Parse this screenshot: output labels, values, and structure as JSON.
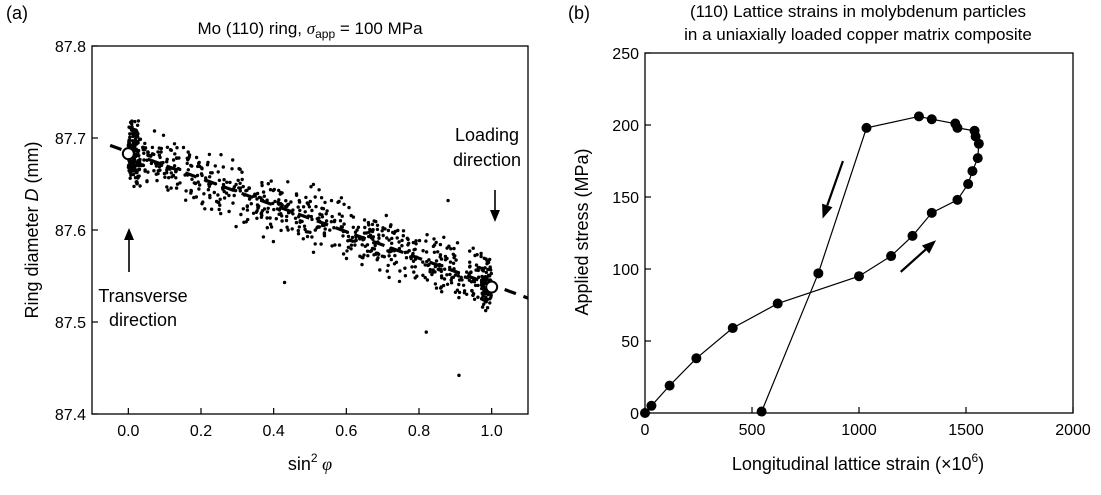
{
  "figure": {
    "panel_a_label": "(a)",
    "panel_b_label": "(b)"
  },
  "chart_data": [
    {
      "type": "scatter",
      "title_parts": {
        "pre": "Mo (110) ring, ",
        "sigma": "σ",
        "sub": "app",
        "post": " = 100 MPa"
      },
      "xlabel_parts": {
        "pre": "sin",
        "sup": "2",
        "phi": " φ"
      },
      "ylabel_parts": {
        "pre": "Ring diameter ",
        "ital": "D",
        "post": " (mm)"
      },
      "xlim": [
        -0.1,
        1.1
      ],
      "ylim": [
        87.4,
        87.8
      ],
      "xticks": [
        0.0,
        0.2,
        0.4,
        0.6,
        0.8,
        1.0
      ],
      "xtick_labels": [
        "0.0",
        "0.2",
        "0.4",
        "0.6",
        "0.8",
        "1.0"
      ],
      "yticks": [
        87.4,
        87.5,
        87.6,
        87.7,
        87.8
      ],
      "ytick_labels": [
        "87.4",
        "87.5",
        "87.6",
        "87.7",
        "87.8"
      ],
      "fit_line": {
        "x": [
          -0.05,
          1.1
        ],
        "y": [
          87.692,
          87.526
        ]
      },
      "open_markers": [
        {
          "x": 0.0,
          "y": 87.683
        },
        {
          "x": 1.0,
          "y": 87.538
        }
      ],
      "scatter_spread_mm": 0.025,
      "scatter_count": 900,
      "outliers": [
        {
          "x": 0.91,
          "y": 87.442
        },
        {
          "x": 0.43,
          "y": 87.543
        },
        {
          "x": 0.82,
          "y": 87.489
        },
        {
          "x": 0.88,
          "y": 87.632
        }
      ],
      "annotations": {
        "transverse": [
          "Transverse",
          "direction"
        ],
        "loading": [
          "Loading",
          "direction"
        ]
      },
      "grid": false
    },
    {
      "type": "line",
      "title_lines": [
        "(110) Lattice strains in molybdenum particles",
        "in a uniaxially loaded copper matrix composite"
      ],
      "xlabel_parts": {
        "pre": "Longitudinal lattice strain (×10",
        "sup": "6",
        "post": ")"
      },
      "ylabel": "Applied stress (MPa)",
      "xlim": [
        0,
        2000
      ],
      "ylim": [
        0,
        250
      ],
      "xticks": [
        0,
        500,
        1000,
        1500,
        2000
      ],
      "xtick_labels": [
        "0",
        "500",
        "1000",
        "1500",
        "2000"
      ],
      "yticks": [
        0,
        50,
        100,
        150,
        200,
        250
      ],
      "ytick_labels": [
        "0",
        "50",
        "100",
        "150",
        "200",
        "250"
      ],
      "loading": {
        "x": [
          0,
          30,
          115,
          240,
          410,
          620,
          1000,
          1150,
          1250,
          1340,
          1460,
          1510,
          1530,
          1555,
          1560,
          1545,
          1540,
          1460,
          1450,
          1340,
          1280
        ],
        "y": [
          0,
          5,
          19,
          38,
          59,
          76,
          95,
          109,
          123,
          139,
          148,
          159,
          168,
          177,
          187,
          192,
          196,
          198,
          201,
          204,
          206
        ]
      },
      "unloading": {
        "x": [
          1280,
          1035,
          810,
          545
        ],
        "y": [
          206,
          198,
          97,
          1
        ]
      },
      "arrows": [
        {
          "from": [
            925,
            175
          ],
          "to": [
            830,
            135
          ],
          "dir": "down"
        },
        {
          "from": [
            1195,
            98
          ],
          "to": [
            1360,
            120
          ],
          "dir": "up"
        }
      ],
      "grid": false
    }
  ]
}
